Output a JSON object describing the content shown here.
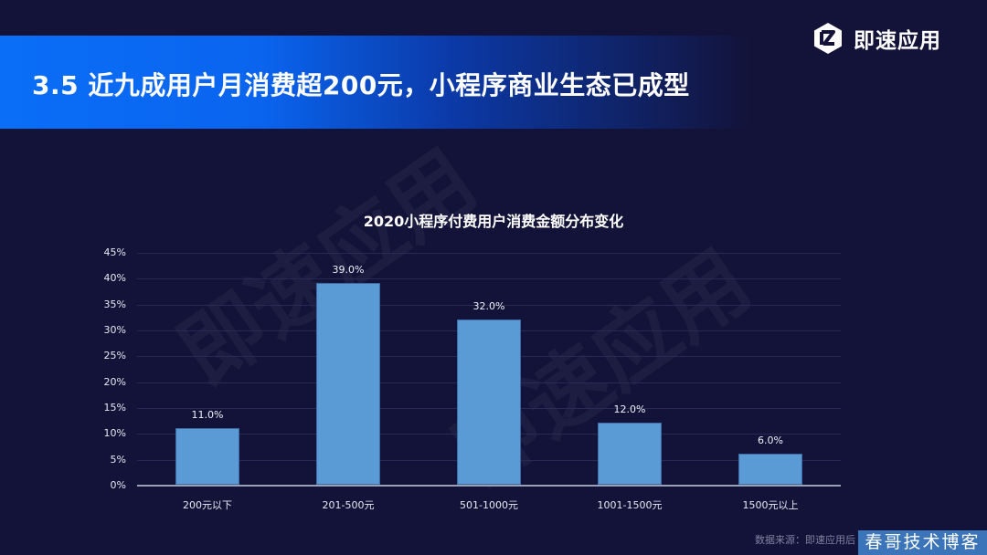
{
  "header": {
    "title": "3.5 近九成用户月消费超200元，小程序商业生态已成型",
    "logo_text": "即速应用",
    "logo_icon": "hexagon-z-logo-icon"
  },
  "watermark": {
    "text": "即速应用"
  },
  "chart_data": {
    "type": "bar",
    "title": "2020小程序付费用户消费金额分布变化",
    "categories": [
      "200元以下",
      "201-500元",
      "501-1000元",
      "1001-1500元",
      "1500元以上"
    ],
    "values": [
      11.0,
      39.0,
      32.0,
      12.0,
      6.0
    ],
    "value_labels": [
      "11.0%",
      "39.0%",
      "32.0%",
      "12.0%",
      "6.0%"
    ],
    "xlabel": "",
    "ylabel": "",
    "ylim": [
      0,
      45
    ],
    "yticks": [
      "0%",
      "5%",
      "10%",
      "15%",
      "20%",
      "25%",
      "30%",
      "35%",
      "40%",
      "45%"
    ],
    "grid": true,
    "legend": "none",
    "bar_color": "#5b9bd5"
  },
  "footer": {
    "source": "数据来源：即速应用后",
    "stamp": "春哥技术博客"
  },
  "colors": {
    "background": "#13133a",
    "banner_start": "#0a6ef7",
    "bar": "#5b9bd5",
    "stamp_bg": "#3b74b8"
  }
}
